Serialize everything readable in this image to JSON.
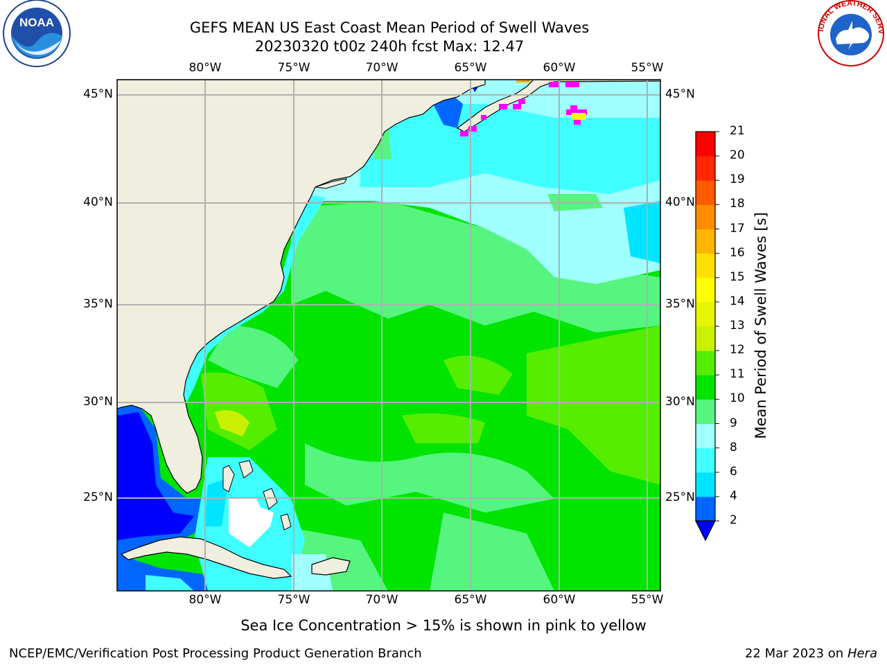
{
  "header": {
    "title_line1": "GEFS MEAN US East Coast Mean Period of Swell Waves",
    "title_line2": "20230320 t00z 240h fcst   Max: 12.47"
  },
  "logos": {
    "noaa_text": "NOAA",
    "nws_text": "NATIONAL WEATHER SERVICE"
  },
  "map": {
    "lon_labels": [
      "80°W",
      "75°W",
      "70°W",
      "65°W",
      "60°W",
      "55°W"
    ],
    "lat_labels": [
      "45°N",
      "40°N",
      "35°N",
      "30°N",
      "25°N"
    ],
    "colors": {
      "land": "#efeedf",
      "grid": "#b0b0b0",
      "sea_ice": "#ff00ff"
    }
  },
  "colorbar": {
    "label": "Mean Period of Swell Waves [s]",
    "ticks": [
      "2",
      "4",
      "6",
      "8",
      "9",
      "10",
      "11",
      "12",
      "13",
      "14",
      "15",
      "16",
      "17",
      "18",
      "19",
      "20",
      "21"
    ],
    "colors": [
      "#0066ff",
      "#00e5ff",
      "#40ffff",
      "#a0ffff",
      "#55f57f",
      "#00e400",
      "#55ee00",
      "#c8f000",
      "#e6f500",
      "#ffff00",
      "#ffe000",
      "#ffb400",
      "#ff8c00",
      "#ff5a00",
      "#ff2800",
      "#ff0000"
    ],
    "under_color": "#0000ff"
  },
  "footer": {
    "note": "Sea Ice Concentration > 15% is shown in pink to yellow",
    "credit_left": "NCEP/EMC/Verification Post Processing Product Generation Branch",
    "credit_date": "22 Mar 2023 on",
    "credit_host": "Hera"
  }
}
